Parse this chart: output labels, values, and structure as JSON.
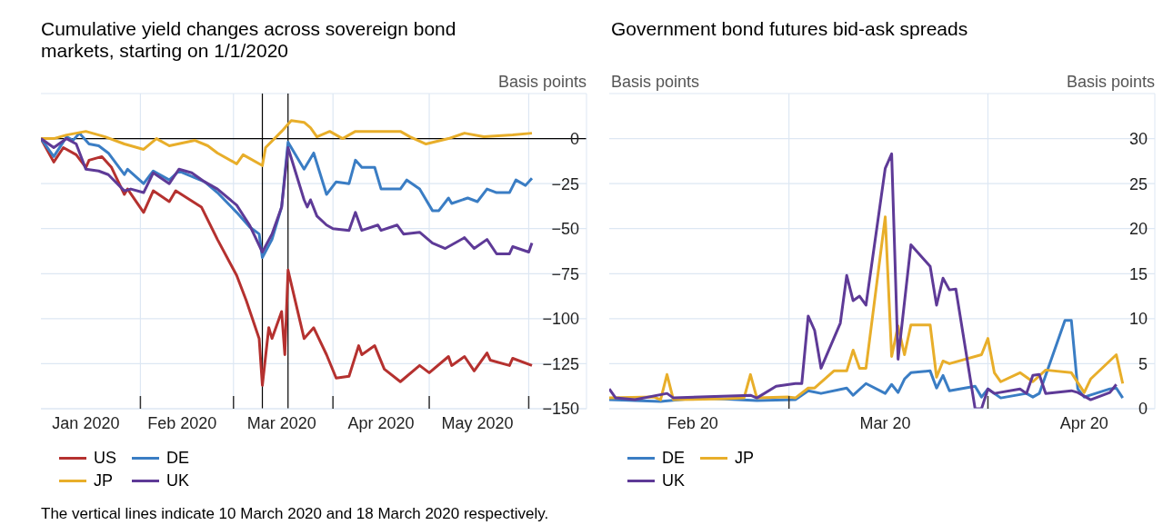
{
  "chart_data": [
    {
      "type": "line",
      "title": "Cumulative yield changes across sovereign bond markets, starting on 1/1/2020",
      "ylabel": "Basis points",
      "xlim": [
        "2020-01-01",
        "2020-06-19"
      ],
      "xticks": [
        {
          "value": "2020-01-15",
          "label": "Jan 2020"
        },
        {
          "value": "2020-02-01",
          "label": null
        },
        {
          "value": "2020-02-14",
          "label": "Feb 2020"
        },
        {
          "value": "2020-03-01",
          "label": null
        },
        {
          "value": "2020-03-16",
          "label": "Mar 2020"
        },
        {
          "value": "2020-04-01",
          "label": null
        },
        {
          "value": "2020-04-16",
          "label": "Apr 2020"
        },
        {
          "value": "2020-05-01",
          "label": null
        },
        {
          "value": "2020-05-16",
          "label": "May 2020"
        },
        {
          "value": "2020-06-01",
          "label": null
        }
      ],
      "ylim": [
        -150,
        25
      ],
      "yticks": [
        {
          "value": 25,
          "label": null
        },
        0,
        -25,
        -50,
        -75,
        -100,
        -125,
        -150
      ],
      "grid": true,
      "legend": "bottom",
      "ref_lines": [
        {
          "axis": "y",
          "value": 0,
          "color": "#000000"
        },
        {
          "axis": "x",
          "value": "2020-03-10",
          "color": "#000000"
        },
        {
          "axis": "x",
          "value": "2020-03-18",
          "color": "#000000"
        }
      ],
      "annotations": [
        "The vertical lines indicate 10 March 2020 and 18 March 2020 respectively."
      ],
      "series": [
        {
          "name": "US",
          "color": "#b5312f",
          "x": [
            "2020-01-01",
            "2020-01-05",
            "2020-01-08",
            "2020-01-12",
            "2020-01-15",
            "2020-01-16",
            "2020-01-20",
            "2020-01-23",
            "2020-01-27",
            "2020-01-28",
            "2020-02-02",
            "2020-02-05",
            "2020-02-10",
            "2020-02-12",
            "2020-02-20",
            "2020-02-25",
            "2020-03-02",
            "2020-03-05",
            "2020-03-09",
            "2020-03-10",
            "2020-03-12",
            "2020-03-13",
            "2020-03-16",
            "2020-03-17",
            "2020-03-18",
            "2020-03-23",
            "2020-03-26",
            "2020-03-30",
            "2020-04-02",
            "2020-04-06",
            "2020-04-09",
            "2020-04-10",
            "2020-04-14",
            "2020-04-17",
            "2020-04-22",
            "2020-04-28",
            "2020-05-01",
            "2020-05-07",
            "2020-05-08",
            "2020-05-12",
            "2020-05-15",
            "2020-05-19",
            "2020-05-20",
            "2020-05-26",
            "2020-05-27",
            "2020-06-02"
          ],
          "values": [
            0,
            -13,
            -5,
            -9,
            -16,
            -12,
            -10,
            -16,
            -31,
            -28,
            -41,
            -29,
            -35,
            -29,
            -38,
            -56,
            -76,
            -90,
            -111,
            -137,
            -105,
            -111,
            -96,
            -120,
            -73,
            -111,
            -105,
            -120,
            -133,
            -132,
            -115,
            -120,
            -115,
            -128,
            -135,
            -126,
            -130,
            -121,
            -126,
            -121,
            -129,
            -119,
            -123,
            -126,
            -122,
            -126
          ]
        },
        {
          "name": "DE",
          "color": "#3a7dc4",
          "x": [
            "2020-01-01",
            "2020-01-05",
            "2020-01-09",
            "2020-01-11",
            "2020-01-13",
            "2020-01-16",
            "2020-01-19",
            "2020-01-22",
            "2020-01-27",
            "2020-01-28",
            "2020-02-02",
            "2020-02-05",
            "2020-02-10",
            "2020-02-13",
            "2020-02-21",
            "2020-02-25",
            "2020-03-02",
            "2020-03-06",
            "2020-03-09",
            "2020-03-10",
            "2020-03-13",
            "2020-03-16",
            "2020-03-18",
            "2020-03-23",
            "2020-03-26",
            "2020-03-30",
            "2020-04-02",
            "2020-04-06",
            "2020-04-08",
            "2020-04-10",
            "2020-04-14",
            "2020-04-16",
            "2020-04-22",
            "2020-04-24",
            "2020-04-28",
            "2020-05-02",
            "2020-05-04",
            "2020-05-07",
            "2020-05-08",
            "2020-05-13",
            "2020-05-16",
            "2020-05-19",
            "2020-05-22",
            "2020-05-26",
            "2020-05-28",
            "2020-05-31",
            "2020-06-02"
          ],
          "values": [
            0,
            -10,
            1,
            -1,
            3,
            -3,
            -4,
            -8,
            -20,
            -17,
            -25,
            -18,
            -23,
            -18,
            -24,
            -30,
            -41,
            -49,
            -53,
            -66,
            -56,
            -38,
            -2,
            -17,
            -8,
            -31,
            -24,
            -25,
            -12,
            -16,
            -16,
            -28,
            -28,
            -23,
            -28,
            -40,
            -40,
            -33,
            -36,
            -33,
            -35,
            -28,
            -30,
            -30,
            -23,
            -26,
            -22
          ]
        },
        {
          "name": "JP",
          "color": "#e8ae2a",
          "x": [
            "2020-01-01",
            "2020-01-05",
            "2020-01-09",
            "2020-01-15",
            "2020-01-21",
            "2020-01-27",
            "2020-02-02",
            "2020-02-06",
            "2020-02-10",
            "2020-02-18",
            "2020-02-22",
            "2020-02-25",
            "2020-03-02",
            "2020-03-04",
            "2020-03-10",
            "2020-03-11",
            "2020-03-16",
            "2020-03-19",
            "2020-03-23",
            "2020-03-25",
            "2020-03-27",
            "2020-03-31",
            "2020-04-04",
            "2020-04-08",
            "2020-04-16",
            "2020-04-22",
            "2020-04-25",
            "2020-04-30",
            "2020-05-07",
            "2020-05-12",
            "2020-05-18",
            "2020-05-27",
            "2020-06-02"
          ],
          "values": [
            0,
            0,
            2,
            4,
            1,
            -3,
            -6,
            0,
            -4,
            -1,
            -4,
            -8,
            -14,
            -9,
            -15,
            -5,
            4,
            10,
            9,
            6,
            1,
            4,
            0,
            4,
            4,
            4,
            1,
            -3,
            0,
            3,
            1,
            2,
            3
          ]
        },
        {
          "name": "UK",
          "color": "#5e3a97",
          "x": [
            "2020-01-01",
            "2020-01-05",
            "2020-01-09",
            "2020-01-12",
            "2020-01-15",
            "2020-01-19",
            "2020-01-22",
            "2020-01-27",
            "2020-01-29",
            "2020-02-02",
            "2020-02-05",
            "2020-02-10",
            "2020-02-13",
            "2020-02-17",
            "2020-02-21",
            "2020-02-25",
            "2020-03-02",
            "2020-03-06",
            "2020-03-10",
            "2020-03-13",
            "2020-03-16",
            "2020-03-18",
            "2020-03-23",
            "2020-03-24",
            "2020-03-25",
            "2020-03-27",
            "2020-03-30",
            "2020-04-01",
            "2020-04-06",
            "2020-04-08",
            "2020-04-10",
            "2020-04-15",
            "2020-04-16",
            "2020-04-21",
            "2020-04-23",
            "2020-04-28",
            "2020-05-02",
            "2020-05-06",
            "2020-05-12",
            "2020-05-15",
            "2020-05-19",
            "2020-05-22",
            "2020-05-26",
            "2020-05-27",
            "2020-06-01",
            "2020-06-02"
          ],
          "values": [
            0,
            -5,
            0,
            -3,
            -17,
            -18,
            -20,
            -29,
            -28,
            -30,
            -19,
            -25,
            -17,
            -19,
            -24,
            -28,
            -37,
            -48,
            -63,
            -53,
            -38,
            -5,
            -34,
            -38,
            -34,
            -43,
            -48,
            -50,
            -51,
            -41,
            -51,
            -48,
            -51,
            -48,
            -53,
            -52,
            -58,
            -61,
            -55,
            -61,
            -56,
            -64,
            -64,
            -60,
            -63,
            -58
          ]
        }
      ]
    },
    {
      "type": "line",
      "title": "Government bond futures bid-ask spreads",
      "ylabel": "Basis points",
      "xlim": [
        "2020-02-02",
        "2020-04-27"
      ],
      "xticks": [
        {
          "value": "2020-02-15",
          "label": "Feb 20"
        },
        {
          "value": "2020-03-01",
          "label": null
        },
        {
          "value": "2020-03-16",
          "label": "Mar 20"
        },
        {
          "value": "2020-04-01",
          "label": null
        },
        {
          "value": "2020-04-16",
          "label": "Apr 20"
        }
      ],
      "ylim": [
        0,
        35
      ],
      "yticks": [
        {
          "value": 35,
          "label": null
        },
        30,
        25,
        20,
        15,
        10,
        5,
        0
      ],
      "grid": true,
      "legend": "bottom",
      "annotations": [
        "Basis points"
      ],
      "series": [
        {
          "name": "DE",
          "color": "#3a7dc4",
          "x": [
            "2020-02-02",
            "2020-02-10",
            "2020-02-16",
            "2020-02-25",
            "2020-03-02",
            "2020-03-04",
            "2020-03-06",
            "2020-03-10",
            "2020-03-11",
            "2020-03-13",
            "2020-03-16",
            "2020-03-17",
            "2020-03-18",
            "2020-03-19",
            "2020-03-20",
            "2020-03-23",
            "2020-03-24",
            "2020-03-25",
            "2020-03-26",
            "2020-03-30",
            "2020-03-31",
            "2020-04-01",
            "2020-04-03",
            "2020-04-07",
            "2020-04-08",
            "2020-04-09",
            "2020-04-13",
            "2020-04-14",
            "2020-04-15",
            "2020-04-16",
            "2020-04-20",
            "2020-04-21",
            "2020-04-22"
          ],
          "values": [
            1,
            0.8,
            1.2,
            0.9,
            1,
            2,
            1.7,
            2.3,
            1.5,
            2.8,
            1.7,
            2.7,
            1.8,
            3.3,
            4,
            4.2,
            2.3,
            3.7,
            2,
            2.5,
            1.3,
            2.2,
            1.2,
            1.7,
            1.3,
            1.7,
            9.8,
            9.8,
            2.2,
            1.3,
            2.2,
            2.3,
            1.2
          ]
        },
        {
          "name": "JP",
          "color": "#e8ae2a",
          "x": [
            "2020-02-02",
            "2020-02-09",
            "2020-02-10",
            "2020-02-11",
            "2020-02-12",
            "2020-02-20",
            "2020-02-23",
            "2020-02-24",
            "2020-02-25",
            "2020-03-01",
            "2020-03-02",
            "2020-03-04",
            "2020-03-05",
            "2020-03-08",
            "2020-03-10",
            "2020-03-11",
            "2020-03-12",
            "2020-03-13",
            "2020-03-16",
            "2020-03-17",
            "2020-03-18",
            "2020-03-19",
            "2020-03-20",
            "2020-03-23",
            "2020-03-24",
            "2020-03-25",
            "2020-03-26",
            "2020-03-31",
            "2020-04-01",
            "2020-04-02",
            "2020-04-03",
            "2020-04-06",
            "2020-04-08",
            "2020-04-10",
            "2020-04-14",
            "2020-04-16",
            "2020-04-17",
            "2020-04-21",
            "2020-04-22"
          ],
          "values": [
            1.2,
            1.3,
            1,
            3.8,
            1,
            1.1,
            1.2,
            3.8,
            1.2,
            1.3,
            1.2,
            2.3,
            2.3,
            4.2,
            4.2,
            6.5,
            4.5,
            4.5,
            21.3,
            5.8,
            9.2,
            6,
            9.3,
            9.3,
            3.5,
            5.3,
            5,
            6,
            7.8,
            4,
            3,
            4,
            3,
            4.3,
            4,
            1.8,
            3.3,
            6,
            2.8
          ]
        },
        {
          "name": "UK",
          "color": "#5e3a97",
          "x": [
            "2020-02-02",
            "2020-02-03",
            "2020-02-06",
            "2020-02-11",
            "2020-02-12",
            "2020-02-24",
            "2020-02-25",
            "2020-02-28",
            "2020-03-02",
            "2020-03-03",
            "2020-03-04",
            "2020-03-05",
            "2020-03-06",
            "2020-03-09",
            "2020-03-10",
            "2020-03-11",
            "2020-03-12",
            "2020-03-13",
            "2020-03-16",
            "2020-03-17",
            "2020-03-18",
            "2020-03-20",
            "2020-03-23",
            "2020-03-24",
            "2020-03-25",
            "2020-03-26",
            "2020-03-27",
            "2020-03-30",
            "2020-03-31",
            "2020-04-01",
            "2020-04-02",
            "2020-04-06",
            "2020-04-07",
            "2020-04-08",
            "2020-04-09",
            "2020-04-10",
            "2020-04-14",
            "2020-04-15",
            "2020-04-17",
            "2020-04-20",
            "2020-04-21"
          ],
          "values": [
            2.2,
            1.2,
            1,
            1.7,
            1.2,
            1.5,
            1.2,
            2.5,
            2.8,
            2.8,
            10.3,
            8.7,
            4.5,
            9.5,
            14.8,
            12,
            12.5,
            11.5,
            26.7,
            28.3,
            5.5,
            18.2,
            15.8,
            11.5,
            14.5,
            13.2,
            13.3,
            0,
            0,
            2.2,
            1.7,
            2.2,
            1.7,
            3.7,
            3.8,
            1.7,
            2,
            1.8,
            1,
            1.8,
            2.7
          ]
        }
      ]
    }
  ]
}
